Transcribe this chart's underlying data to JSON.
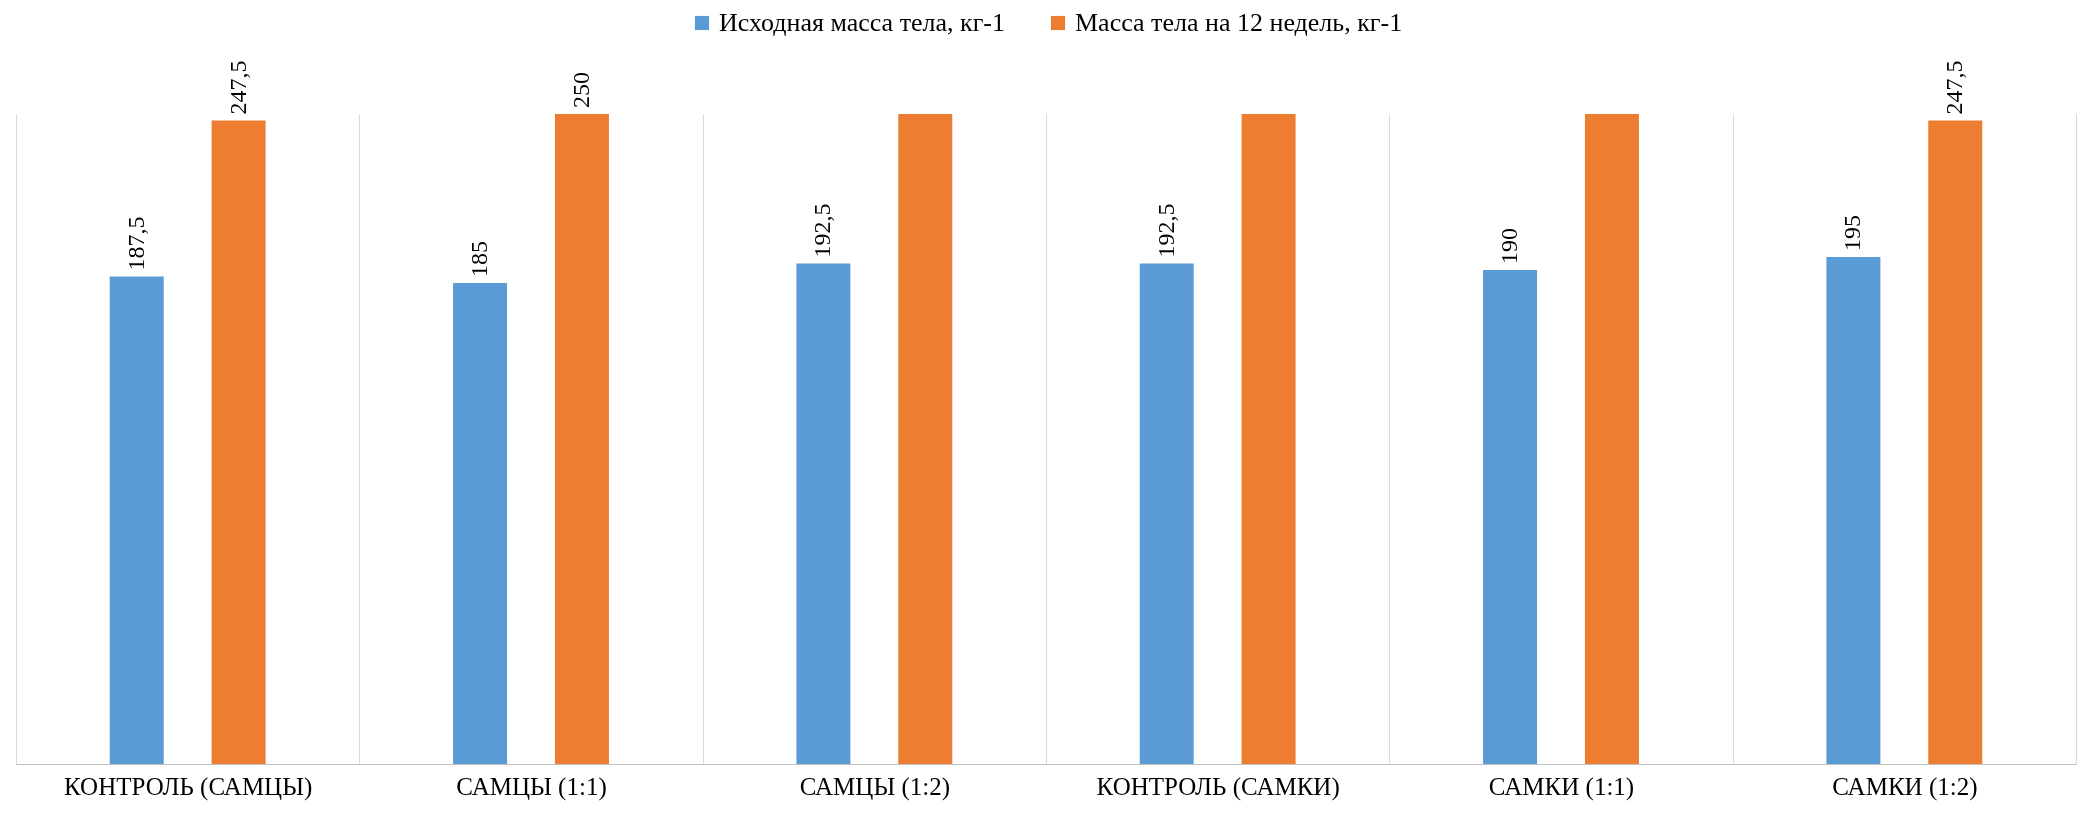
{
  "chart_data": {
    "type": "bar",
    "categories": [
      "КОНТРОЛЬ (САМЦЫ)",
      "САМЦЫ (1:1)",
      "САМЦЫ (1:2)",
      "КОНТРОЛЬ (САМКИ)",
      "САМКИ (1:1)",
      "САМКИ (1:2)"
    ],
    "series": [
      {
        "name": "Исходная масса тела, кг-1",
        "color": "#5b9bd5",
        "values": [
          187.5,
          185,
          192.5,
          192.5,
          190,
          195
        ],
        "value_labels": [
          "187,5",
          "185",
          "192,5",
          "192,5",
          "190",
          "195"
        ]
      },
      {
        "name": "Масса тела на 12 недель, кг-1",
        "color": "#ed7d31",
        "values": [
          247.5,
          250,
          250,
          250,
          250,
          247.5
        ],
        "value_labels": [
          "247,5",
          "250",
          null,
          null,
          null,
          "247,5"
        ]
      }
    ],
    "ylim": [
      0,
      250
    ],
    "grid": "x",
    "legend": "top"
  }
}
